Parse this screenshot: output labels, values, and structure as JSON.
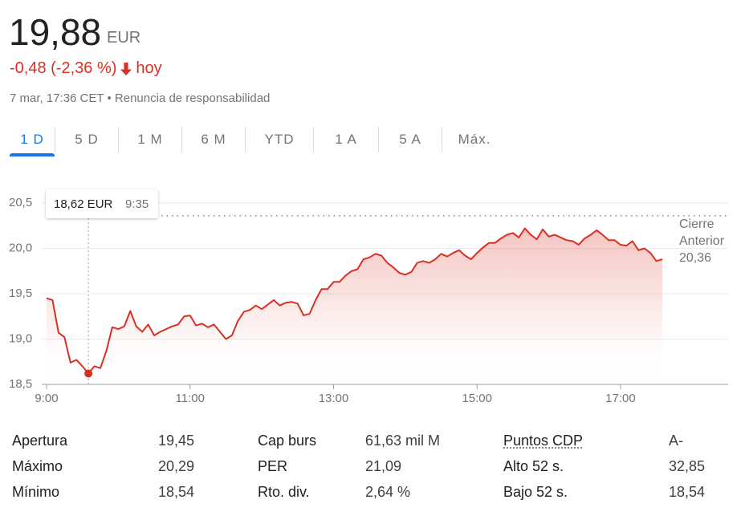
{
  "header": {
    "price": "19,88",
    "currency": "EUR",
    "change": "-0,48 (-2,36 %)",
    "period": "hoy",
    "timestamp": "7 mar, 17:36 CET",
    "separator": "•",
    "disclaimer": "Renuncia de responsabilidad"
  },
  "tabs": {
    "items": [
      "1 D",
      "5 D",
      "1 M",
      "6 M",
      "YTD",
      "1 A",
      "5 A",
      "Máx."
    ],
    "active": 0
  },
  "chart_data": {
    "type": "line",
    "color": "#d93025",
    "x": [
      "9:00",
      "9:05",
      "9:10",
      "9:15",
      "9:20",
      "9:25",
      "9:30",
      "9:35",
      "9:40",
      "9:45",
      "9:50",
      "9:55",
      "10:00",
      "10:05",
      "10:10",
      "10:15",
      "10:20",
      "10:25",
      "10:30",
      "10:35",
      "10:40",
      "10:45",
      "10:50",
      "10:55",
      "11:00",
      "11:05",
      "11:10",
      "11:15",
      "11:20",
      "11:25",
      "11:30",
      "11:35",
      "11:40",
      "11:45",
      "11:50",
      "11:55",
      "12:00",
      "12:05",
      "12:10",
      "12:15",
      "12:20",
      "12:25",
      "12:30",
      "12:35",
      "12:40",
      "12:45",
      "12:50",
      "12:55",
      "13:00",
      "13:05",
      "13:10",
      "13:15",
      "13:20",
      "13:25",
      "13:30",
      "13:35",
      "13:40",
      "13:45",
      "13:50",
      "13:55",
      "14:00",
      "14:05",
      "14:10",
      "14:15",
      "14:20",
      "14:25",
      "14:30",
      "14:35",
      "14:40",
      "14:45",
      "14:50",
      "14:55",
      "15:00",
      "15:05",
      "15:10",
      "15:15",
      "15:20",
      "15:25",
      "15:30",
      "15:35",
      "15:40",
      "15:45",
      "15:50",
      "15:55",
      "16:00",
      "16:05",
      "16:10",
      "16:15",
      "16:20",
      "16:25",
      "16:30",
      "16:35",
      "16:40",
      "16:45",
      "16:50",
      "16:55",
      "17:00",
      "17:05",
      "17:10",
      "17:15",
      "17:20",
      "17:25",
      "17:30",
      "17:35"
    ],
    "values": [
      19.45,
      19.43,
      19.07,
      19.02,
      18.74,
      18.77,
      18.7,
      18.62,
      18.7,
      18.68,
      18.87,
      19.13,
      19.11,
      19.14,
      19.31,
      19.14,
      19.08,
      19.16,
      19.04,
      19.08,
      19.11,
      19.14,
      19.16,
      19.25,
      19.26,
      19.15,
      19.17,
      19.13,
      19.16,
      19.08,
      19.0,
      19.04,
      19.2,
      19.3,
      19.32,
      19.37,
      19.33,
      19.38,
      19.43,
      19.37,
      19.4,
      19.41,
      19.39,
      19.26,
      19.28,
      19.43,
      19.55,
      19.55,
      19.63,
      19.63,
      19.7,
      19.75,
      19.77,
      19.88,
      19.9,
      19.94,
      19.92,
      19.84,
      19.79,
      19.73,
      19.71,
      19.74,
      19.84,
      19.86,
      19.84,
      19.88,
      19.94,
      19.91,
      19.95,
      19.98,
      19.92,
      19.88,
      19.95,
      20.01,
      20.06,
      20.06,
      20.11,
      20.15,
      20.17,
      20.12,
      20.22,
      20.15,
      20.1,
      20.21,
      20.13,
      20.15,
      20.12,
      20.09,
      20.08,
      20.04,
      20.11,
      20.15,
      20.2,
      20.15,
      20.09,
      20.09,
      20.04,
      20.03,
      20.08,
      19.98,
      20.0,
      19.95,
      19.86,
      19.88
    ],
    "xlim": [
      "9:00",
      "18:30"
    ],
    "xticks": [
      "9:00",
      "11:00",
      "13:00",
      "15:00",
      "17:00"
    ],
    "ylim": [
      18.5,
      20.5
    ],
    "yticks": [
      {
        "value": 18.5,
        "label": "18,5"
      },
      {
        "value": 19,
        "label": "19,0"
      },
      {
        "value": 19.5,
        "label": "19,5"
      },
      {
        "value": 20,
        "label": "20,0"
      },
      {
        "value": 20.5,
        "label": "20,5"
      }
    ],
    "grid": true,
    "previous_close": {
      "value": 20.36,
      "label_lines": [
        "Cierre",
        "Anterior"
      ],
      "value_label": "20,36"
    },
    "tooltip": {
      "x": "9:35",
      "value": 18.62,
      "label": "18,62 EUR"
    }
  },
  "stats": {
    "columns": [
      {
        "rows": [
          {
            "label": "Apertura",
            "value": "19,45"
          },
          {
            "label": "Máximo",
            "value": "20,29"
          },
          {
            "label": "Mínimo",
            "value": "18,54"
          }
        ]
      },
      {
        "rows": [
          {
            "label": "Cap burs",
            "value": "61,63 mil M"
          },
          {
            "label": "PER",
            "value": "21,09"
          },
          {
            "label": "Rto. div.",
            "value": "2,64 %"
          }
        ]
      },
      {
        "rows": [
          {
            "label": "Puntos CDP",
            "value": "A-",
            "dotted": true
          },
          {
            "label": "Alto 52 s.",
            "value": "32,85"
          },
          {
            "label": "Bajo 52 s.",
            "value": "18,54"
          }
        ]
      }
    ]
  }
}
